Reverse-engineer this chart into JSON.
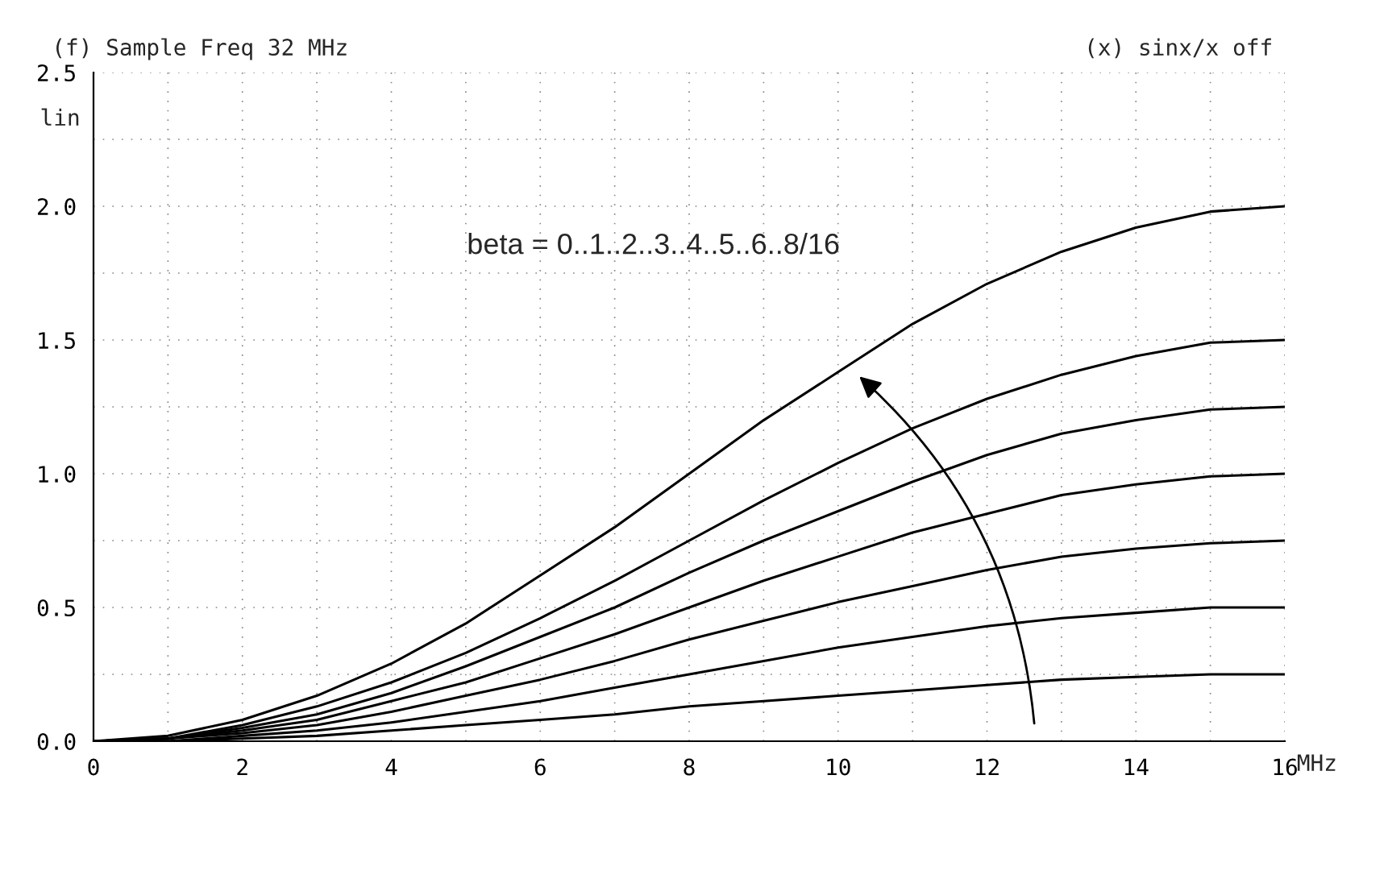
{
  "chart_data": {
    "type": "line",
    "title": "(f) Sample Freq 32 MHz",
    "xlabel": "MHz",
    "ylabel": "lin",
    "annotations": [
      "(x) sinx/x off",
      "beta = 0..1..2..3..4..5..6..8/16"
    ],
    "x": [
      0,
      1,
      2,
      3,
      4,
      5,
      6,
      7,
      8,
      9,
      10,
      11,
      12,
      13,
      14,
      15,
      16
    ],
    "series": [
      {
        "color": "#000000",
        "values": [
          0,
          0,
          0.01,
          0.02,
          0.04,
          0.06,
          0.08,
          0.1,
          0.13,
          0.15,
          0.17,
          0.19,
          0.21,
          0.23,
          0.24,
          0.25,
          0.25
        ]
      },
      {
        "color": "#000000",
        "values": [
          0,
          0,
          0.02,
          0.04,
          0.07,
          0.11,
          0.15,
          0.2,
          0.25,
          0.3,
          0.35,
          0.39,
          0.43,
          0.46,
          0.48,
          0.5,
          0.5
        ]
      },
      {
        "color": "#000000",
        "values": [
          0,
          0.01,
          0.03,
          0.06,
          0.11,
          0.17,
          0.23,
          0.3,
          0.38,
          0.45,
          0.52,
          0.58,
          0.64,
          0.69,
          0.72,
          0.74,
          0.75
        ]
      },
      {
        "color": "#000000",
        "values": [
          0,
          0.01,
          0.04,
          0.08,
          0.15,
          0.22,
          0.31,
          0.4,
          0.5,
          0.6,
          0.69,
          0.78,
          0.85,
          0.92,
          0.96,
          0.99,
          1
        ]
      },
      {
        "color": "#000000",
        "values": [
          0,
          0.01,
          0.05,
          0.1,
          0.18,
          0.28,
          0.39,
          0.5,
          0.63,
          0.75,
          0.86,
          0.97,
          1.07,
          1.15,
          1.2,
          1.24,
          1.25
        ]
      },
      {
        "color": "#000000",
        "values": [
          0,
          0.01,
          0.06,
          0.13,
          0.22,
          0.33,
          0.46,
          0.6,
          0.75,
          0.9,
          1.04,
          1.17,
          1.28,
          1.37,
          1.44,
          1.49,
          1.5
        ]
      },
      {
        "color": "#000000",
        "values": [
          0,
          0.02,
          0.08,
          0.17,
          0.29,
          0.44,
          0.62,
          0.8,
          1.0,
          1.2,
          1.38,
          1.56,
          1.71,
          1.83,
          1.92,
          1.98,
          2.0
        ]
      }
    ],
    "xlim": [
      0,
      16
    ],
    "xticks": [
      0,
      2,
      4,
      6,
      8,
      10,
      12,
      14,
      16
    ],
    "ylim": [
      0,
      2.5
    ],
    "yticks": [
      {
        "value": 0,
        "label": "0.0"
      },
      {
        "value": 0.5,
        "label": "0.5"
      },
      {
        "value": 1,
        "label": "1.0"
      },
      {
        "value": 1.5,
        "label": "1.5"
      },
      {
        "value": 2,
        "label": "2.0"
      },
      2.5
    ],
    "grid": true,
    "marker": "none",
    "line_style": "solid"
  }
}
